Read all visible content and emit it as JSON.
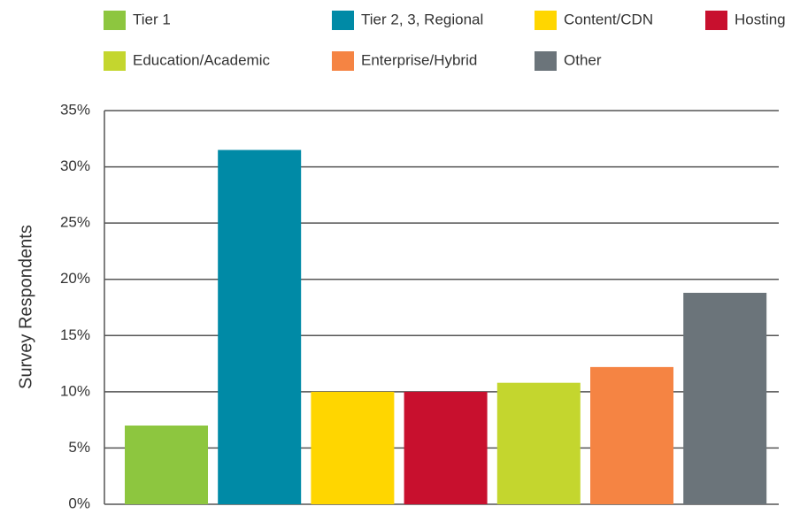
{
  "chart_data": {
    "type": "bar",
    "ylabel": "Survey Respondents",
    "categories": [
      "Tier 1",
      "Tier 2, 3, Regional",
      "Content/CDN",
      "Hosting",
      "Education/Academic",
      "Enterprise/Hybrid",
      "Other"
    ],
    "values": [
      7,
      31.5,
      10,
      10,
      10.8,
      12.2,
      18.8
    ],
    "colors": [
      "#8dc63f",
      "#008aa6",
      "#ffd600",
      "#c8102e",
      "#c4d62e",
      "#f58443",
      "#6b747a"
    ],
    "ylim": [
      0,
      35
    ],
    "yticks": [
      {
        "value": 0,
        "label": "0%"
      },
      {
        "value": 5,
        "label": "5%"
      },
      {
        "value": 10,
        "label": "10%"
      },
      {
        "value": 15,
        "label": "15%"
      },
      {
        "value": 20,
        "label": "20%"
      },
      {
        "value": 25,
        "label": "25%"
      },
      {
        "value": 30,
        "label": "30%"
      },
      {
        "value": 35,
        "label": "35%"
      }
    ],
    "grid": true
  }
}
